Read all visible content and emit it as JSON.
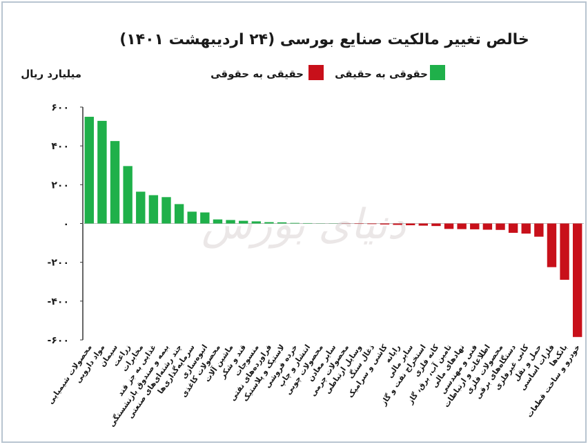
{
  "chart_data": {
    "type": "bar",
    "title": "خالص تغییر مالکیت صنایع بورسی (۲۴ اردیبهشت ۱۴۰۱)",
    "y_axis_label": "میلیارد ریال",
    "watermark": "دنیای بورس",
    "categories": [
      "محصولات شیمیایی",
      "مواد دارویی",
      "سیمان",
      "زراعت",
      "مخابرات",
      "غذایی به جز قند",
      "بیمه و صندوق بازنشستگی",
      "چند رشته‌ای‌های صنعتی",
      "سرمایه‌گذاری‌ها",
      "انبوه‌سازی",
      "محصولات کاغذی",
      "ماشین آلات",
      "قند و شکر",
      "منسوجات",
      "فراورده‌های نفتی",
      "لاستیک و پلاستیک",
      "خرده فروشی",
      "انتشار و چاپ",
      "محصولات چوبی",
      "سایر معادن",
      "محصولات چرمی",
      "وسایل ارتباطی",
      "ذغال سنگ",
      "کاشی و سرامیک",
      "رایانه",
      "سایر مالی",
      "استخراج نفت و گاز",
      "کانه فلزی",
      "تامین آب، برق، گاز",
      "نهادهای مالی",
      "فنی و مهندسی",
      "اطلاعات و ارتباطات",
      "محصولات فلزی",
      "دستگاه‌های برقی",
      "کانی غیرفلزی",
      "حمل و نقل",
      "فلزات اساسی",
      "بانک‌ها",
      "خودرو و ساخت قطعات"
    ],
    "series": [
      {
        "name": "حقوقی به حقیقی",
        "color": "#1fb04a",
        "values": [
          550,
          529,
          425,
          296,
          164,
          146,
          136,
          100,
          61,
          57,
          21,
          18,
          14,
          11,
          7,
          6,
          3,
          2,
          1,
          1,
          null,
          null,
          null,
          null,
          null,
          null,
          null,
          null,
          null,
          null,
          null,
          null,
          null,
          null,
          null,
          null,
          null,
          null,
          null
        ]
      },
      {
        "name": "حقیقی به حقوقی",
        "color": "#c8101a",
        "values": [
          null,
          null,
          null,
          null,
          null,
          null,
          null,
          null,
          null,
          null,
          null,
          null,
          null,
          null,
          null,
          null,
          null,
          null,
          null,
          null,
          -1,
          -2,
          -3,
          -5,
          -7,
          -9,
          -11,
          -13,
          -28,
          -29,
          -30,
          -32,
          -33,
          -48,
          -52,
          -68,
          -225,
          -290,
          -585
        ]
      }
    ],
    "ylim": [
      -600,
      600
    ],
    "yticks": [
      {
        "value": 600,
        "label": "۶۰۰"
      },
      {
        "value": 400,
        "label": "۴۰۰"
      },
      {
        "value": 200,
        "label": "۲۰۰"
      },
      {
        "value": 0,
        "label": "۰"
      },
      {
        "value": -200,
        "label": "-۲۰۰"
      },
      {
        "value": -400,
        "label": "-۴۰۰"
      },
      {
        "value": -600,
        "label": "-۶۰۰"
      }
    ]
  }
}
